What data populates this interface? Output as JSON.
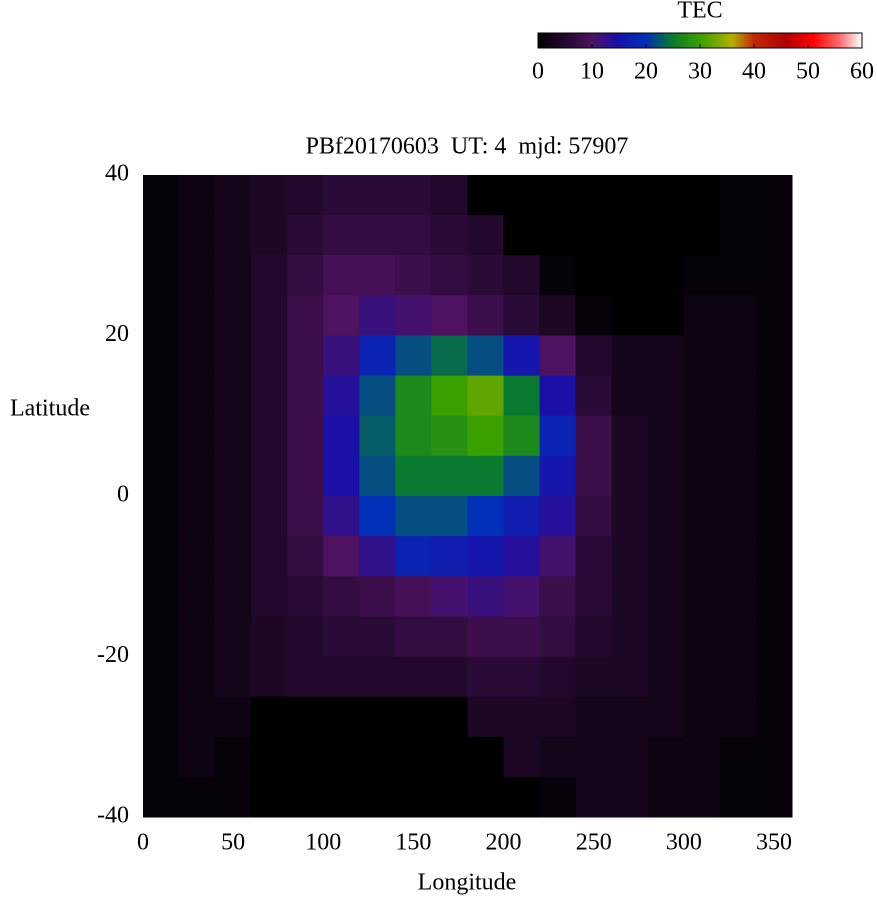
{
  "chart_data": {
    "type": "heatmap",
    "title": "PBf20170603  UT: 4  mjd: 57907",
    "xlabel": "Longitude",
    "ylabel": "Latitude",
    "x": [
      10,
      30,
      50,
      70,
      90,
      110,
      130,
      150,
      170,
      190,
      210,
      230,
      250,
      270,
      290,
      310,
      330,
      350
    ],
    "y": [
      37.5,
      32.5,
      27.5,
      22.5,
      17.5,
      12.5,
      7.5,
      2.5,
      -2.5,
      -7.5,
      -12.5,
      -17.5,
      -22.5,
      -27.5,
      -32.5,
      -37.5
    ],
    "z": [
      [
        1,
        2,
        3,
        4,
        5,
        6,
        6,
        6,
        5,
        0,
        0,
        0,
        0,
        0,
        0,
        0,
        1,
        1
      ],
      [
        1,
        2,
        3,
        4,
        6,
        7,
        7,
        7,
        6,
        5,
        0,
        0,
        0,
        0,
        0,
        0,
        1,
        1
      ],
      [
        1,
        2,
        3,
        5,
        7,
        9,
        9,
        8,
        7,
        6,
        5,
        1,
        0,
        0,
        0,
        1,
        1,
        1
      ],
      [
        1,
        2,
        3,
        5,
        8,
        10,
        12,
        11,
        10,
        8,
        6,
        4,
        1,
        0,
        0,
        2,
        2,
        1
      ],
      [
        1,
        2,
        3,
        5,
        8,
        12,
        18,
        22,
        24,
        22,
        16,
        10,
        5,
        3,
        3,
        2,
        2,
        1
      ],
      [
        1,
        2,
        3,
        5,
        8,
        14,
        22,
        27,
        30,
        32,
        25,
        15,
        6,
        3,
        3,
        2,
        2,
        1
      ],
      [
        1,
        2,
        3,
        5,
        8,
        15,
        23,
        27,
        28,
        30,
        27,
        18,
        8,
        4,
        3,
        2,
        2,
        1
      ],
      [
        1,
        2,
        3,
        5,
        8,
        15,
        22,
        25,
        25,
        25,
        22,
        16,
        8,
        4,
        3,
        2,
        2,
        1
      ],
      [
        1,
        2,
        3,
        5,
        8,
        13,
        20,
        22,
        22,
        20,
        17,
        14,
        7,
        4,
        3,
        2,
        2,
        1
      ],
      [
        1,
        2,
        3,
        5,
        7,
        10,
        13,
        18,
        17,
        16,
        14,
        11,
        6,
        4,
        3,
        2,
        2,
        1
      ],
      [
        1,
        2,
        3,
        5,
        6,
        7,
        8,
        9,
        11,
        12,
        11,
        8,
        6,
        4,
        3,
        2,
        2,
        1
      ],
      [
        1,
        2,
        3,
        4,
        5,
        6,
        6,
        7,
        7,
        8,
        8,
        7,
        5,
        4,
        3,
        2,
        2,
        1
      ],
      [
        1,
        2,
        3,
        4,
        5,
        5,
        5,
        5,
        5,
        6,
        6,
        5,
        4,
        4,
        3,
        2,
        2,
        1
      ],
      [
        1,
        2,
        2,
        0,
        0,
        0,
        0,
        0,
        0,
        4,
        4,
        4,
        3,
        3,
        3,
        2,
        2,
        1
      ],
      [
        1,
        2,
        1,
        0,
        0,
        0,
        0,
        0,
        0,
        0,
        4,
        3,
        3,
        3,
        2,
        2,
        1,
        1
      ],
      [
        1,
        1,
        1,
        0,
        0,
        0,
        0,
        0,
        0,
        0,
        0,
        1,
        3,
        3,
        2,
        2,
        1,
        1
      ]
    ],
    "xlim": [
      0,
      360
    ],
    "ylim": [
      -40,
      40
    ],
    "xticks": [
      0,
      50,
      100,
      150,
      200,
      250,
      300,
      350
    ],
    "yticks": [
      -40,
      -20,
      0,
      20,
      40
    ],
    "grid": false,
    "colorbar_label": "TEC",
    "clim": [
      0,
      60
    ],
    "cticks": [
      0,
      10,
      20,
      30,
      40,
      50,
      60
    ],
    "colorscale": [
      {
        "value": 0,
        "color": "#000000"
      },
      {
        "value": 6,
        "color": "#2a0a36"
      },
      {
        "value": 10,
        "color": "#4e1260"
      },
      {
        "value": 15,
        "color": "#1a10a8"
      },
      {
        "value": 20,
        "color": "#0030b8"
      },
      {
        "value": 25,
        "color": "#0a7a30"
      },
      {
        "value": 30,
        "color": "#3aa000"
      },
      {
        "value": 36,
        "color": "#b0b000"
      },
      {
        "value": 40,
        "color": "#c02800"
      },
      {
        "value": 46,
        "color": "#b00000"
      },
      {
        "value": 51,
        "color": "#ff0000"
      },
      {
        "value": 56,
        "color": "#ff7070"
      },
      {
        "value": 60,
        "color": "#ffffff"
      }
    ]
  }
}
